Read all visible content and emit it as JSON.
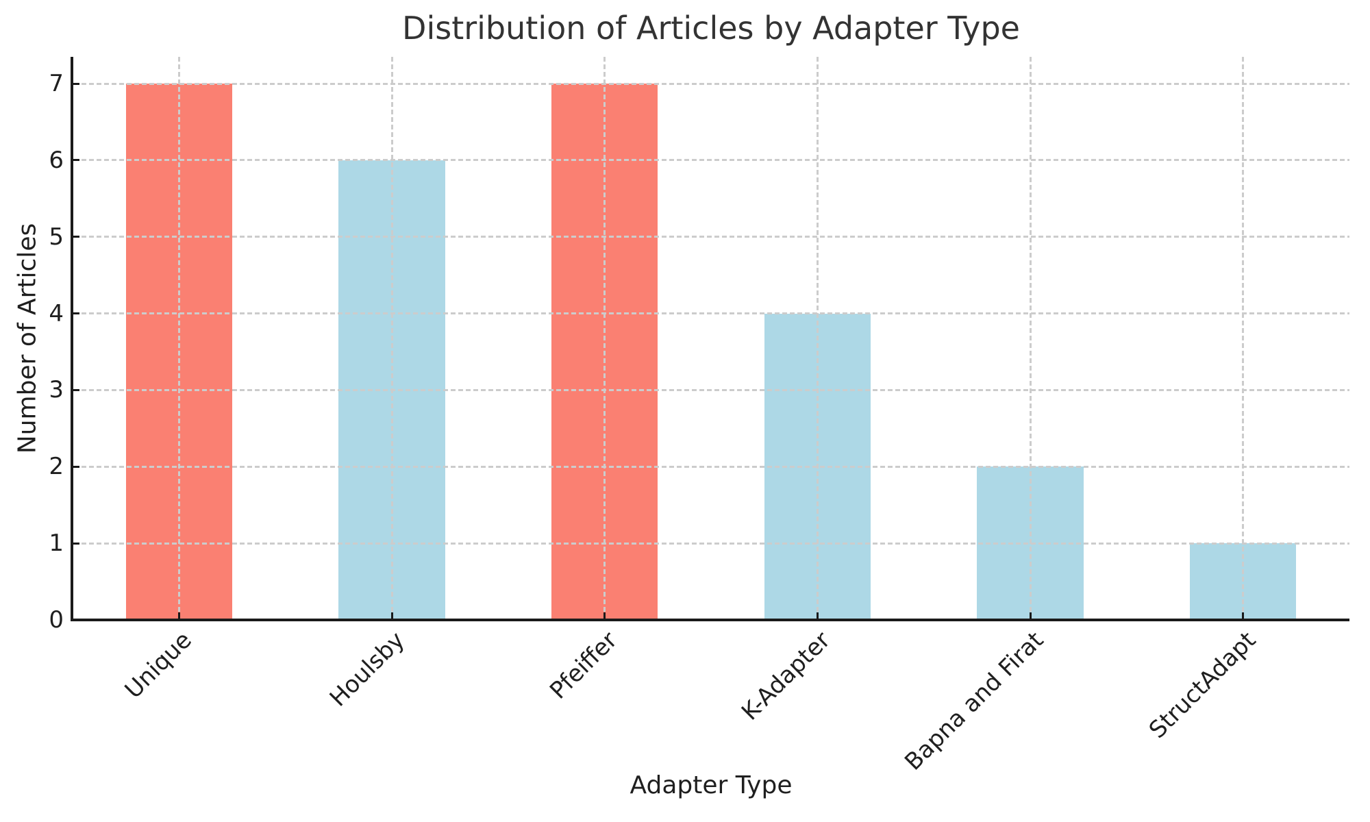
{
  "chart_data": {
    "type": "bar",
    "title": "Distribution of Articles by Adapter Type",
    "xlabel": "Adapter Type",
    "ylabel": "Number of Articles",
    "categories": [
      "Unique",
      "Houlsby",
      "Pfeiffer",
      "K-Adapter",
      "Bapna and Firat",
      "StructAdapt"
    ],
    "values": [
      7,
      6,
      7,
      4,
      2,
      1
    ],
    "bar_colors": [
      "#FA8072",
      "#ADD8E6",
      "#FA8072",
      "#ADD8E6",
      "#ADD8E6",
      "#ADD8E6"
    ],
    "ytick_labels": [
      "0",
      "1",
      "2",
      "3",
      "4",
      "5",
      "6",
      "7"
    ],
    "yticks": [
      0,
      1,
      2,
      3,
      4,
      5,
      6,
      7
    ],
    "ylim": [
      0,
      7.35
    ],
    "xtick_rotation_deg": 45,
    "grid": {
      "visible": true,
      "style": "dashed",
      "axes": "both",
      "above_bars": true
    },
    "legend_position": "none",
    "colors": {
      "salmon_bar": "#FA8072",
      "lightblue_bar": "#ADD8E6",
      "grid": "#cccccc",
      "axis": "#1a1a1a",
      "title_text": "#333333",
      "label_text": "#1f1f1f",
      "background": "#ffffff"
    }
  }
}
